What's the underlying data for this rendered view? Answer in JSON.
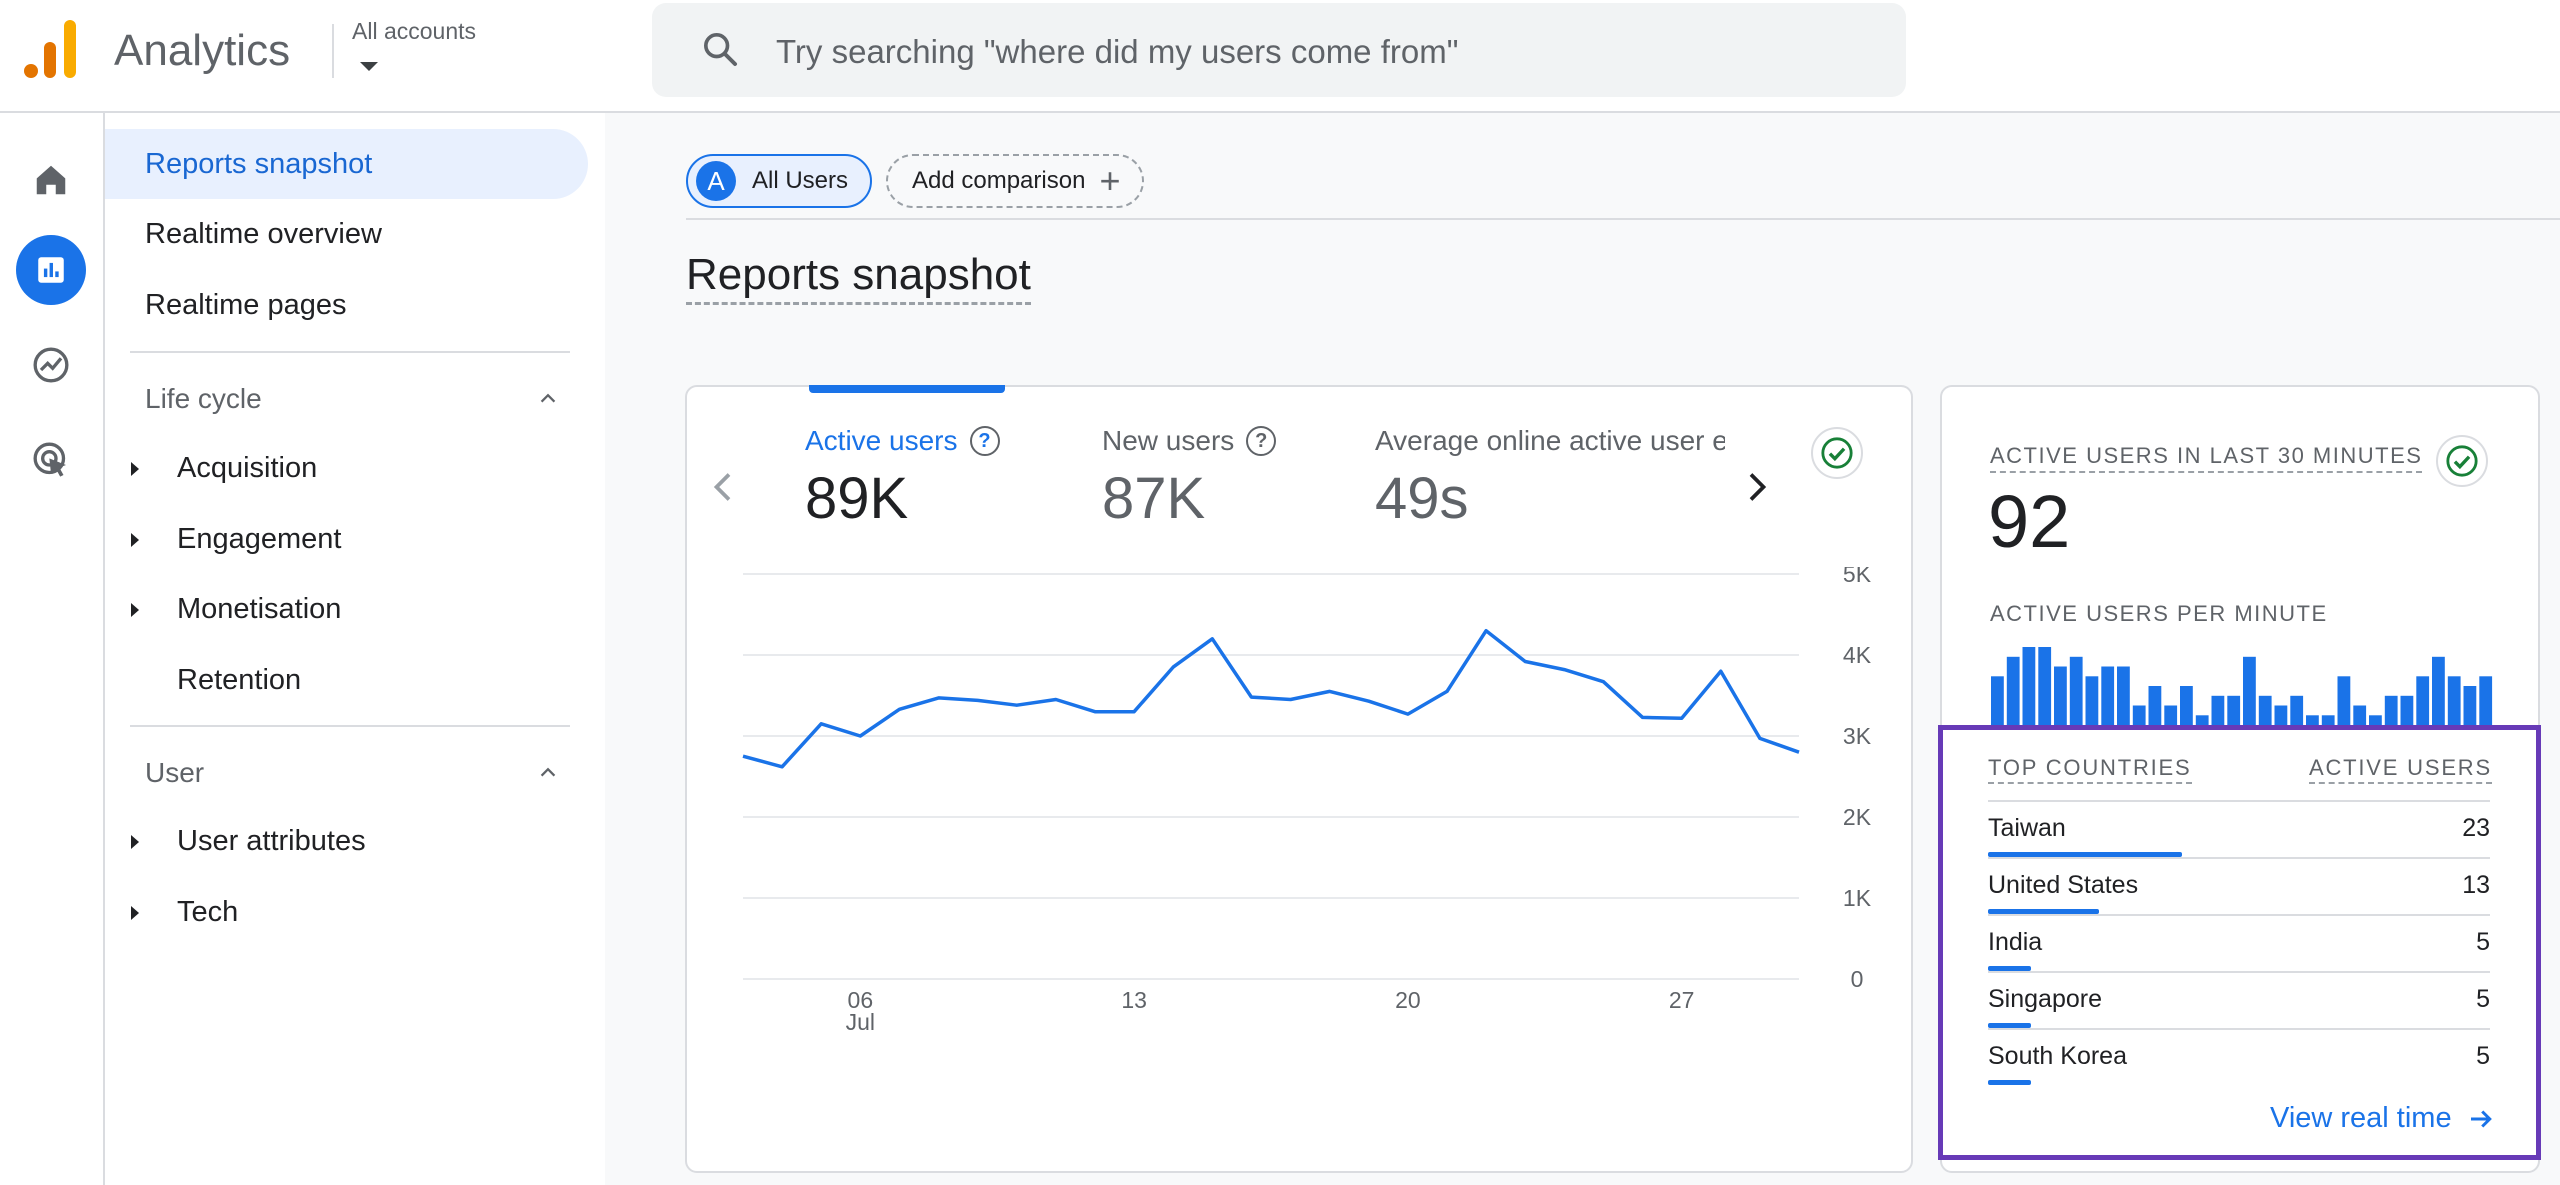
{
  "header": {
    "app_title": "Analytics",
    "accounts_label": "All accounts",
    "search_placeholder": "Try searching \"where did my users come from\""
  },
  "nav": {
    "reports_snapshot": "Reports snapshot",
    "realtime_overview": "Realtime overview",
    "realtime_pages": "Realtime pages",
    "lifecycle": {
      "label": "Life cycle",
      "items": [
        "Acquisition",
        "Engagement",
        "Monetisation",
        "Retention"
      ]
    },
    "user": {
      "label": "User",
      "items": [
        "User attributes",
        "Tech"
      ]
    }
  },
  "comparison": {
    "avatar_letter": "A",
    "all_users": "All Users",
    "add_comparison": "Add comparison"
  },
  "page_title": "Reports snapshot",
  "metrics": [
    {
      "label": "Active users",
      "value": "89K"
    },
    {
      "label": "New users",
      "value": "87K"
    },
    {
      "label": "Average online active user engagement time",
      "value": "49s"
    }
  ],
  "chart_data": {
    "type": "line",
    "title": "",
    "series": [
      {
        "name": "Active users",
        "values": [
          2.75,
          2.62,
          3.15,
          3.0,
          3.33,
          3.47,
          3.44,
          3.38,
          3.45,
          3.3,
          3.3,
          3.85,
          4.2,
          3.48,
          3.45,
          3.55,
          3.43,
          3.27,
          3.55,
          4.3,
          3.92,
          3.82,
          3.67,
          3.23,
          3.22,
          3.8,
          2.97,
          2.8
        ]
      }
    ],
    "x_tick_labels": [
      "06",
      "13",
      "20",
      "27"
    ],
    "x_tick_sublabel": "Jul",
    "x_tick_indices": [
      3,
      10,
      17,
      24
    ],
    "y_tick_labels": [
      "5K",
      "4K",
      "3K",
      "2K",
      "1K",
      "0"
    ],
    "ylim": [
      0,
      5
    ],
    "ylabel": "",
    "xlabel": ""
  },
  "realtime": {
    "title": "ACTIVE USERS IN LAST 30 MINUTES",
    "value": "92",
    "per_minute_label": "ACTIVE USERS PER MINUTE",
    "per_minute": [
      5,
      7,
      8,
      8,
      6,
      7,
      5,
      6,
      6,
      2,
      4,
      2,
      4,
      1,
      3,
      3,
      7,
      3,
      2,
      3,
      1,
      1,
      5,
      2,
      1,
      3,
      3,
      5,
      7,
      5,
      4,
      5
    ],
    "top_countries_header": "TOP COUNTRIES",
    "active_users_header": "ACTIVE USERS",
    "countries": [
      {
        "name": "Taiwan",
        "value": "23",
        "share": 1.0
      },
      {
        "name": "United States",
        "value": "13",
        "share": 0.57
      },
      {
        "name": "India",
        "value": "5",
        "share": 0.22
      },
      {
        "name": "Singapore",
        "value": "5",
        "share": 0.22
      },
      {
        "name": "South Korea",
        "value": "5",
        "share": 0.22
      }
    ],
    "view_realtime": "View real time"
  },
  "colors": {
    "accent": "#1a73e8",
    "highlight": "#673ab7",
    "check": "#188038"
  }
}
